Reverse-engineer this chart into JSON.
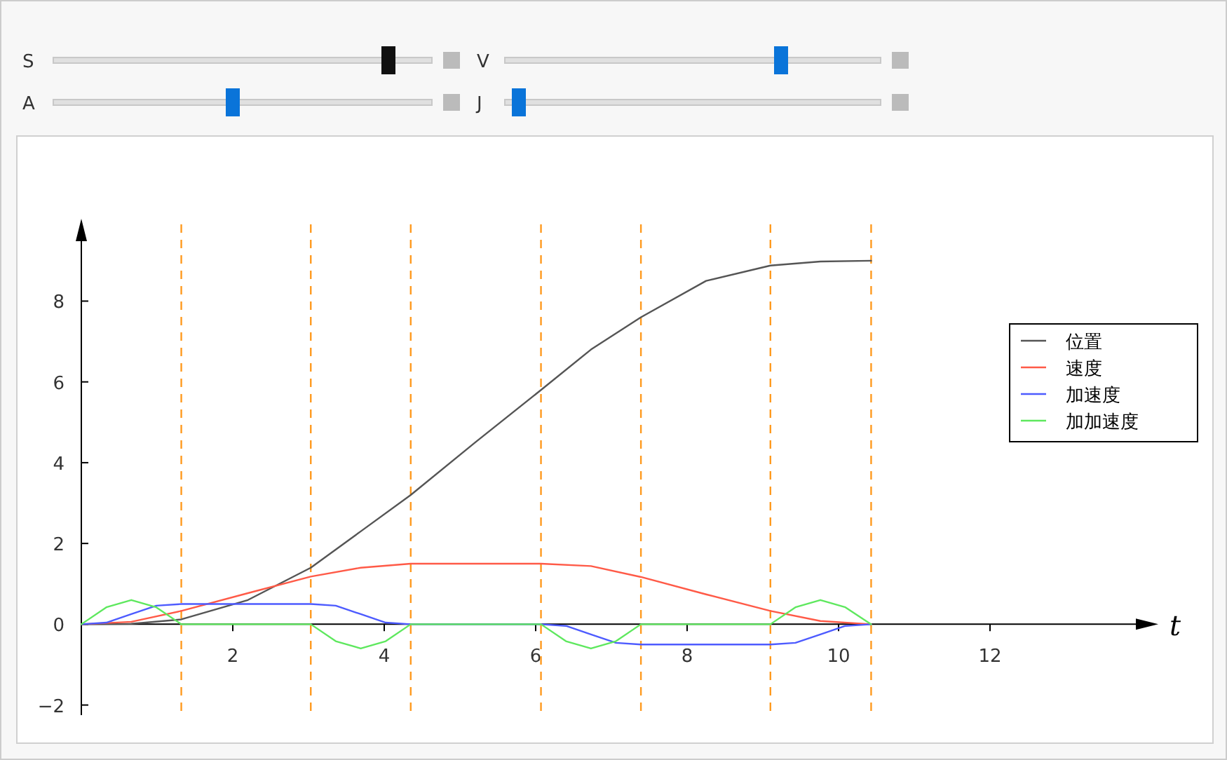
{
  "chart_data": {
    "type": "line",
    "xlabel": "t",
    "xlim": [
      0,
      14
    ],
    "ylim": [
      -2.25,
      9.9
    ],
    "xticks": [
      2,
      4,
      6,
      8,
      10,
      12
    ],
    "yticks": [
      -2,
      0,
      2,
      4,
      6,
      8
    ],
    "legend": "right",
    "annotations": [
      "S",
      "V",
      "A",
      "J"
    ],
    "series": [
      {
        "name": "位置",
        "color": "#555555",
        "x": [
          0,
          0.66,
          1.32,
          2.2,
          3.03,
          3.69,
          4.35,
          5.2,
          6.07,
          6.73,
          7.39,
          8.25,
          9.1,
          9.76,
          10.43
        ],
        "values": [
          0,
          0.01,
          0.12,
          0.6,
          1.4,
          2.3,
          3.2,
          4.5,
          5.8,
          6.8,
          7.6,
          8.5,
          8.88,
          8.98,
          9.0
        ]
      },
      {
        "name": "速度",
        "color": "#ff5a47",
        "x": [
          0,
          0.66,
          1.32,
          2.2,
          3.03,
          3.69,
          4.35,
          6.07,
          6.73,
          7.39,
          8.25,
          9.1,
          9.76,
          10.43
        ],
        "values": [
          0,
          0.06,
          0.33,
          0.77,
          1.18,
          1.4,
          1.5,
          1.5,
          1.44,
          1.17,
          0.74,
          0.33,
          0.08,
          0
        ]
      },
      {
        "name": "加速度",
        "color": "#4d5bff",
        "x": [
          0,
          0.33,
          0.66,
          0.99,
          1.32,
          3.03,
          3.36,
          3.69,
          4.02,
          4.35,
          6.07,
          6.4,
          6.73,
          7.06,
          7.39,
          9.1,
          9.43,
          9.76,
          10.09,
          10.43
        ],
        "values": [
          0,
          0.04,
          0.25,
          0.46,
          0.5,
          0.5,
          0.46,
          0.25,
          0.04,
          0,
          0,
          -0.04,
          -0.25,
          -0.46,
          -0.5,
          -0.5,
          -0.46,
          -0.25,
          -0.04,
          0
        ]
      },
      {
        "name": "加加速度",
        "color": "#5ee85e",
        "x": [
          0,
          0.33,
          0.66,
          0.99,
          1.32,
          3.03,
          3.36,
          3.69,
          4.02,
          4.35,
          6.07,
          6.4,
          6.73,
          7.06,
          7.39,
          9.1,
          9.43,
          9.76,
          10.09,
          10.43
        ],
        "values": [
          0,
          0.42,
          0.6,
          0.42,
          0,
          0,
          -0.42,
          -0.6,
          -0.42,
          0,
          0,
          -0.42,
          -0.6,
          -0.42,
          0,
          0,
          0.42,
          0.6,
          0.42,
          0
        ]
      }
    ],
    "ref_lines": [
      {
        "axis": "x",
        "value": 1.32,
        "color": "#ff9a1f",
        "line_style": "dashed"
      },
      {
        "axis": "x",
        "value": 3.03,
        "color": "#ff9a1f",
        "line_style": "dashed"
      },
      {
        "axis": "x",
        "value": 4.35,
        "color": "#ff9a1f",
        "line_style": "dashed"
      },
      {
        "axis": "x",
        "value": 6.07,
        "color": "#ff9a1f",
        "line_style": "dashed"
      },
      {
        "axis": "x",
        "value": 7.39,
        "color": "#ff9a1f",
        "line_style": "dashed"
      },
      {
        "axis": "x",
        "value": 9.1,
        "color": "#ff9a1f",
        "line_style": "dashed"
      },
      {
        "axis": "x",
        "value": 10.43,
        "color": "#ff9a1f",
        "line_style": "dashed"
      }
    ]
  }
}
